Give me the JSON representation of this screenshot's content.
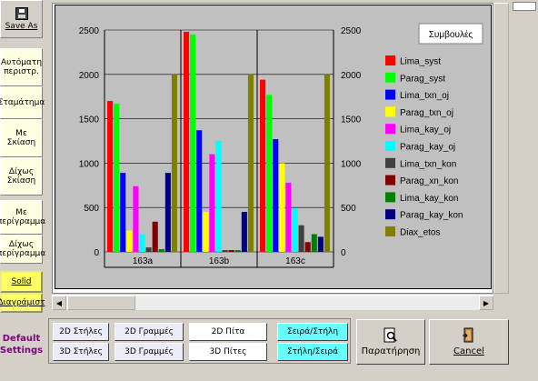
{
  "left_toolbar": {
    "save_as": "Save As",
    "auto_rotate": "Αυτόματη περιστρ.",
    "stop": "Σταμάτημα",
    "with_shadow": "Με Σκίαση",
    "no_shadow": "Δίχως Σκίαση",
    "with_outline": "Με περίγραμμα",
    "no_outline": "Δίχως περίγραμμα",
    "solid": "Solid",
    "gradient": "Διαγράμιστ",
    "default_settings": "Default Settings"
  },
  "chart_data": {
    "type": "bar",
    "categories": [
      "163a",
      "163b",
      "163c"
    ],
    "ylim": [
      0,
      2500
    ],
    "yticks": [
      0,
      500,
      1000,
      1500,
      2000,
      2500
    ],
    "grid": true,
    "legend_position": "right",
    "series": [
      {
        "name": "Lima_syst",
        "color": "#ff0000",
        "values": [
          1700,
          2480,
          1940
        ]
      },
      {
        "name": "Parag_syst",
        "color": "#00ff00",
        "values": [
          1670,
          2450,
          1770
        ]
      },
      {
        "name": "Lima_txn_oj",
        "color": "#0000ff",
        "values": [
          890,
          1370,
          1270
        ]
      },
      {
        "name": "Parag_txn_oj",
        "color": "#ffff00",
        "values": [
          240,
          450,
          1000
        ]
      },
      {
        "name": "Lima_kay_oj",
        "color": "#ff00ff",
        "values": [
          740,
          1100,
          780
        ]
      },
      {
        "name": "Parag_kay_oj",
        "color": "#00ffff",
        "values": [
          200,
          1250,
          490
        ]
      },
      {
        "name": "Lima_txn_kon",
        "color": "#404040",
        "values": [
          50,
          20,
          300
        ]
      },
      {
        "name": "Parag_xn_kon",
        "color": "#800000",
        "values": [
          340,
          20,
          110
        ]
      },
      {
        "name": "Lima_kay_kon",
        "color": "#008000",
        "values": [
          30,
          20,
          200
        ]
      },
      {
        "name": "Parag_kay_kon",
        "color": "#000080",
        "values": [
          890,
          450,
          170
        ]
      },
      {
        "name": "Diax_etos",
        "color": "#808000",
        "values": [
          2000,
          2000,
          2000
        ]
      }
    ],
    "advice_button": "Συμβουλές"
  },
  "bottom_toolbar": {
    "bars_2d": "2D Στήλες",
    "bars_3d": "3D Στήλες",
    "lines_2d": "2D Γραμμές",
    "lines_3d": "3D Γραμμές",
    "pie_2d": "2D Πίτα",
    "pie_3d": "3D Πίτες",
    "series_column": "Σειρά/Στήλη",
    "column_series": "Στήλη/Σειρά",
    "preview": "Παρατήρηση",
    "cancel": "Cancel"
  }
}
